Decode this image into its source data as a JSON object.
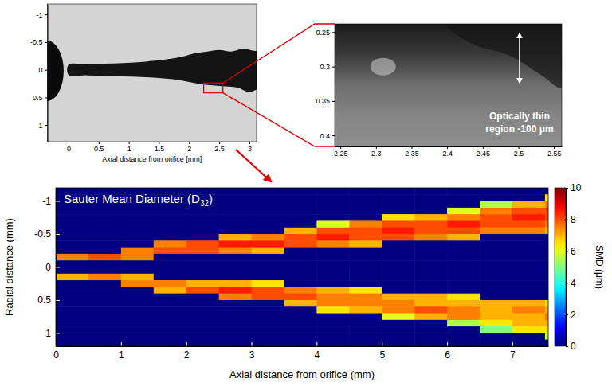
{
  "chart_data": [
    {
      "type": "image",
      "xlabel": "Axial distance from orifice [mm]",
      "xlim": [
        -0.35,
        3.12
      ],
      "ylim": [
        -1.19,
        1.3
      ],
      "xticks": [
        0,
        0.5,
        1,
        1.5,
        2,
        2.5,
        3
      ],
      "yticks": [
        -1,
        -0.5,
        0,
        0.5,
        1
      ]
    },
    {
      "type": "image",
      "xlim": [
        2.242,
        2.561
      ],
      "ylim": [
        0.238,
        0.416
      ],
      "xticks": [
        2.25,
        2.3,
        2.35,
        2.4,
        2.45,
        2.5,
        2.55
      ],
      "yticks": [
        0.25,
        0.3,
        0.35,
        0.4
      ],
      "annotation": [
        "Optically thin",
        "region -100 μm"
      ]
    },
    {
      "type": "heatmap",
      "title": "Sauter Mean Diameter (D32)",
      "xlabel": "Axial distance from orifice (mm)",
      "ylabel": "Radial distance (mm)",
      "xlim": [
        0,
        7.55
      ],
      "ylim": [
        -1.2,
        1.2
      ],
      "xticks": [
        0,
        1,
        2,
        3,
        4,
        5,
        6,
        7
      ],
      "yticks": [
        -1,
        -0.5,
        0,
        0.5,
        1
      ],
      "x": [
        0.25,
        0.75,
        1.25,
        1.75,
        2.25,
        2.75,
        3.25,
        3.75,
        4.25,
        4.75,
        5.25,
        5.75,
        6.25,
        6.75,
        7.25,
        7.75
      ],
      "y": [
        -1.15,
        -1.05,
        -0.95,
        -0.85,
        -0.75,
        -0.65,
        -0.55,
        -0.45,
        -0.35,
        -0.25,
        -0.15,
        -0.05,
        0.05,
        0.15,
        0.25,
        0.35,
        0.45,
        0.55,
        0.65,
        0.75,
        0.85,
        0.95,
        1.05,
        1.15
      ],
      "values": [
        [
          0,
          0,
          0,
          0,
          0,
          0,
          0,
          0,
          0,
          0,
          0,
          0,
          0,
          0,
          0,
          0
        ],
        [
          0,
          0,
          0,
          0,
          0,
          0,
          0,
          0,
          0,
          0,
          0,
          0,
          0,
          0,
          0,
          6.5
        ],
        [
          0,
          0,
          0,
          0,
          0,
          0,
          0,
          0,
          0,
          0,
          0,
          0,
          0,
          5.5,
          7,
          7.5
        ],
        [
          0,
          0,
          0,
          0,
          0,
          0,
          0,
          0,
          0,
          0,
          0,
          0,
          6,
          7.5,
          8,
          8
        ],
        [
          0,
          0,
          0,
          0,
          0,
          0,
          0,
          0,
          0,
          0,
          6.5,
          7,
          7.5,
          8,
          8.5,
          8
        ],
        [
          0,
          0,
          0,
          0,
          0,
          0,
          0,
          0,
          6,
          7.5,
          8,
          8,
          8.5,
          8,
          8,
          7.5
        ],
        [
          0,
          0,
          0,
          0,
          0,
          0,
          0,
          7,
          8,
          8,
          8.5,
          8,
          8,
          7.5,
          7.5,
          7
        ],
        [
          0,
          0,
          0,
          0,
          0,
          7,
          7.5,
          8,
          8.5,
          8,
          8,
          7.5,
          7,
          0,
          0,
          0
        ],
        [
          0,
          0,
          0,
          7.5,
          8,
          8.5,
          8.5,
          8,
          7.5,
          7,
          0,
          0,
          0,
          0,
          0,
          0
        ],
        [
          0,
          0,
          7.5,
          8,
          8,
          7.5,
          7,
          0,
          0,
          0,
          0,
          0,
          0,
          0,
          0,
          0
        ],
        [
          7.5,
          8,
          7.5,
          0,
          0,
          0,
          0,
          0,
          0,
          0,
          0,
          0,
          0,
          0,
          0,
          0
        ],
        [
          0,
          0,
          0,
          0,
          0,
          0,
          0,
          0,
          0,
          0,
          0,
          0,
          0,
          0,
          0,
          0
        ],
        [
          0,
          0,
          0,
          0,
          0,
          0,
          0,
          0,
          0,
          0,
          0,
          0,
          0,
          0,
          0,
          0
        ],
        [
          7,
          7.5,
          7,
          0,
          0,
          0,
          0,
          0,
          0,
          0,
          0,
          0,
          0,
          0,
          0,
          0
        ],
        [
          0,
          0,
          7.5,
          7.5,
          7,
          7,
          6.5,
          0,
          0,
          0,
          0,
          0,
          0,
          0,
          0,
          0
        ],
        [
          0,
          0,
          0,
          7,
          8,
          8.5,
          8,
          7.5,
          7,
          6.5,
          0,
          0,
          0,
          0,
          0,
          0
        ],
        [
          0,
          0,
          0,
          0,
          0,
          7.5,
          8,
          8,
          7.5,
          7.5,
          7,
          7,
          6.5,
          0,
          0,
          0
        ],
        [
          0,
          0,
          0,
          0,
          0,
          0,
          0,
          7,
          7.5,
          7.5,
          7.5,
          7,
          7,
          7,
          7,
          6.5
        ],
        [
          0,
          0,
          0,
          0,
          0,
          0,
          0,
          0,
          6.5,
          7,
          7.5,
          8,
          7.5,
          7,
          7.5,
          7
        ],
        [
          0,
          0,
          0,
          0,
          0,
          0,
          0,
          0,
          0,
          0,
          6,
          7,
          7.5,
          7,
          7,
          7.5
        ],
        [
          0,
          0,
          0,
          0,
          0,
          0,
          0,
          0,
          0,
          0,
          0,
          0,
          5.5,
          6.5,
          7,
          7
        ],
        [
          0,
          0,
          0,
          0,
          0,
          0,
          0,
          0,
          0,
          0,
          0,
          0,
          0,
          5,
          6.5,
          6.5
        ],
        [
          0,
          0,
          0,
          0,
          0,
          0,
          0,
          0,
          0,
          0,
          0,
          0,
          0,
          0,
          0,
          5.5
        ],
        [
          0,
          0,
          0,
          0,
          0,
          0,
          0,
          0,
          0,
          0,
          0,
          0,
          0,
          0,
          0,
          0
        ]
      ],
      "colorbar": {
        "label": "SMD (μm)",
        "lim": [
          0,
          10
        ],
        "ticks": [
          0,
          2,
          4,
          6,
          8,
          10
        ]
      }
    }
  ]
}
